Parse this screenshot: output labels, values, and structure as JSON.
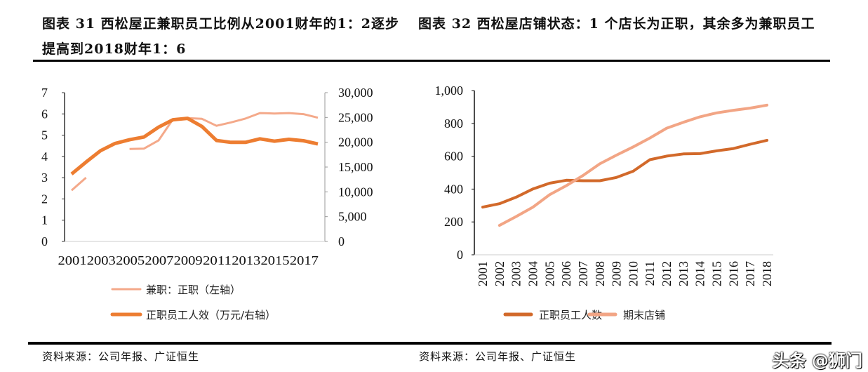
{
  "left_title": "图表 31 西松屋正兼职员工比例从2001财年的1：2逐步提高到2018财年1：6",
  "right_title": "图表 32 西松屋店铺状态：1 个店长为正职，其余多为兼职员工",
  "left_source": "资料来源：公司年报、广证恒生",
  "right_source": "资料来源：公司年报、广证恒生",
  "watermark": "头条 @狮门",
  "chart_data": [
    {
      "type": "line",
      "x": [
        2001,
        2002,
        2003,
        2004,
        2005,
        2006,
        2007,
        2008,
        2009,
        2010,
        2011,
        2012,
        2013,
        2014,
        2015,
        2016,
        2017,
        2018
      ],
      "x_tick_labels": [
        "2001",
        "2003",
        "2005",
        "2007",
        "2009",
        "2011",
        "2013",
        "2015",
        "2017"
      ],
      "ylim_left": [
        0,
        7
      ],
      "y_ticks_left": [
        "0",
        "1",
        "2",
        "3",
        "4",
        "5",
        "6",
        "7"
      ],
      "ylim_right": [
        0,
        30000
      ],
      "y_ticks_right": [
        "0",
        "5,000",
        "10,000",
        "15,000",
        "20,000",
        "25,000",
        "30,000"
      ],
      "grid": false,
      "legend_position": "bottom",
      "series": [
        {
          "name": "兼职：正职（左轴）",
          "axis": "left",
          "color": "#F4A98A",
          "values": [
            2.4,
            3.0,
            null,
            null,
            4.35,
            4.37,
            4.75,
            5.75,
            5.8,
            5.77,
            5.44,
            5.6,
            5.78,
            6.04,
            6.02,
            6.04,
            5.99,
            5.82
          ]
        },
        {
          "name": "正职员工人效（万元/右轴）",
          "axis": "right",
          "color": "#ED7D31",
          "values": [
            13600,
            16000,
            18300,
            19750,
            20500,
            21060,
            23040,
            24540,
            24820,
            23180,
            20360,
            19980,
            19980,
            20690,
            20220,
            20590,
            20310,
            19650
          ]
        }
      ]
    },
    {
      "type": "line",
      "x": [
        2001,
        2002,
        2003,
        2004,
        2005,
        2006,
        2007,
        2008,
        2009,
        2010,
        2011,
        2012,
        2013,
        2014,
        2015,
        2016,
        2017,
        2018
      ],
      "x_tick_labels": [
        "2001",
        "2002",
        "2003",
        "2004",
        "2005",
        "2006",
        "2007",
        "2008",
        "2009",
        "2010",
        "2011",
        "2012",
        "2013",
        "2014",
        "2015",
        "2016",
        "2017",
        "2018"
      ],
      "ylim": [
        0,
        1000
      ],
      "y_ticks": [
        "0",
        "200",
        "400",
        "600",
        "800",
        "1,000"
      ],
      "grid": false,
      "legend_position": "bottom",
      "series": [
        {
          "name": "正职员工人数",
          "color": "#D2692A",
          "values": [
            290,
            311,
            351,
            401,
            436,
            454,
            451,
            451,
            471,
            509,
            579,
            601,
            614,
            616,
            633,
            647,
            673,
            697
          ]
        },
        {
          "name": "期末店铺",
          "color": "#F2A585",
          "values": [
            null,
            179,
            233,
            290,
            366,
            421,
            483,
            554,
            607,
            657,
            711,
            771,
            807,
            840,
            864,
            880,
            893,
            911
          ]
        }
      ]
    }
  ]
}
